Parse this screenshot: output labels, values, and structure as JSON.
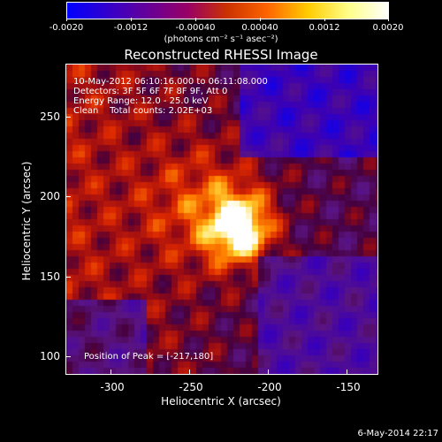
{
  "colorbar": {
    "tick_labels": [
      "-0.0020",
      "-0.0012",
      "-0.00040",
      "0.00040",
      "0.0012",
      "0.0020"
    ],
    "units": "(photons cm⁻² s⁻¹ asec⁻²)",
    "colors": [
      "#0000ff",
      "#3300cc",
      "#660099",
      "#990066",
      "#cc3300",
      "#ff6600",
      "#ffcc00",
      "#ffff88",
      "#ffffff"
    ]
  },
  "title": "Reconstructed RHESSI Image",
  "info": {
    "time_range": "10-May-2012 06:10:16.000 to 06:11:08.000",
    "detectors": "Detectors: 3F 5F 6F 7F 8F 9F, Att 0",
    "energy": "Energy Range: 12.0 - 25.0 keV",
    "clean": "Clean    Total counts: 2.02E+03"
  },
  "peak_text": "Position of Peak = [-217,180]",
  "axes": {
    "xlabel": "Heliocentric X (arcsec)",
    "ylabel": "Heliocentric Y (arcsec)",
    "x_ticks": [
      "-300",
      "-250",
      "-200",
      "-150"
    ],
    "y_ticks": [
      "250",
      "200",
      "150",
      "100"
    ]
  },
  "datestamp": "6-May-2014 22:17"
}
